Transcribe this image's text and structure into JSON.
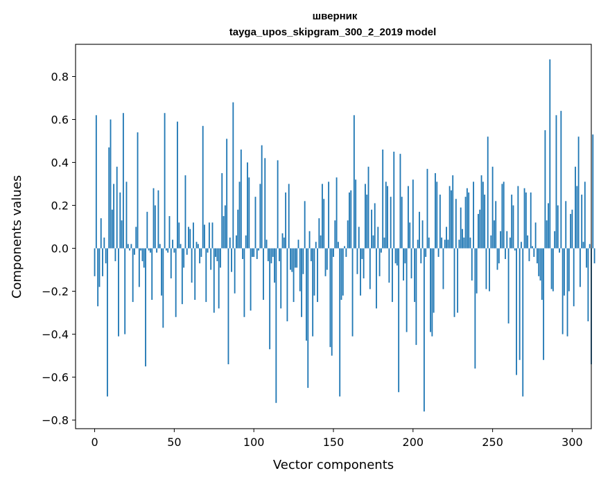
{
  "chart_data": {
    "type": "bar",
    "title_line1": "шверник",
    "title_line2": "tayga_upos_skipgram_300_2_2019 model",
    "xlabel": "Vector components",
    "ylabel": "Components values",
    "xlim": [
      -12,
      312
    ],
    "ylim": [
      -0.84,
      0.95
    ],
    "xticks": [
      0,
      50,
      100,
      150,
      200,
      250,
      300
    ],
    "xtick_labels": [
      "0",
      "50",
      "100",
      "150",
      "200",
      "250",
      "300"
    ],
    "yticks": [
      -0.8,
      -0.6,
      -0.4,
      -0.2,
      0.0,
      0.2,
      0.4,
      0.6,
      0.8
    ],
    "ytick_labels": [
      "−0.8",
      "−0.6",
      "−0.4",
      "−0.2",
      "0.0",
      "0.2",
      "0.4",
      "0.6",
      "0.8"
    ],
    "bar_color": "#1f77b4",
    "values": [
      -0.13,
      0.62,
      -0.27,
      -0.18,
      0.14,
      -0.13,
      0.05,
      -0.07,
      -0.69,
      0.47,
      0.6,
      0.18,
      0.3,
      -0.06,
      0.38,
      -0.41,
      0.26,
      0.13,
      0.63,
      -0.4,
      0.31,
      0.02,
      -0.01,
      0.02,
      -0.25,
      -0.03,
      0.1,
      0.54,
      -0.18,
      -0.01,
      -0.06,
      -0.09,
      -0.55,
      0.17,
      -0.01,
      -0.02,
      -0.24,
      0.28,
      0.2,
      -0.02,
      0.27,
      0.02,
      -0.22,
      -0.37,
      0.63,
      -0.01,
      -0.02,
      0.15,
      -0.14,
      0.04,
      -0.02,
      -0.32,
      0.59,
      0.12,
      0.02,
      -0.26,
      -0.09,
      0.34,
      -0.03,
      0.1,
      0.09,
      -0.16,
      0.12,
      -0.24,
      0.03,
      0.02,
      -0.07,
      -0.04,
      0.57,
      0.11,
      -0.25,
      -0.02,
      0.12,
      -0.1,
      0.12,
      -0.3,
      -0.04,
      -0.06,
      -0.28,
      -0.09,
      0.35,
      0.15,
      0.2,
      0.51,
      -0.54,
      0.05,
      -0.11,
      0.68,
      -0.21,
      0.06,
      0.18,
      0.31,
      0.46,
      -0.05,
      -0.32,
      0.06,
      0.4,
      0.33,
      -0.29,
      -0.04,
      -0.04,
      0.24,
      -0.05,
      -0.01,
      0.3,
      0.48,
      -0.24,
      0.42,
      0.04,
      -0.06,
      -0.47,
      -0.07,
      -0.04,
      -0.16,
      -0.72,
      0.41,
      -0.06,
      -0.28,
      0.07,
      0.05,
      0.26,
      -0.34,
      0.3,
      -0.1,
      -0.11,
      -0.25,
      -0.09,
      -0.09,
      0.04,
      -0.2,
      -0.32,
      -0.12,
      0.22,
      -0.43,
      -0.65,
      0.08,
      -0.06,
      -0.41,
      -0.22,
      0.03,
      -0.25,
      0.14,
      0.06,
      0.3,
      0.23,
      -0.13,
      -0.1,
      0.31,
      -0.46,
      -0.5,
      -0.04,
      0.13,
      0.33,
      0.03,
      -0.69,
      -0.24,
      -0.22,
      0.01,
      -0.04,
      0.13,
      0.26,
      0.27,
      -0.41,
      0.62,
      0.32,
      -0.12,
      0.1,
      -0.22,
      -0.05,
      -0.14,
      0.3,
      0.25,
      0.38,
      -0.19,
      0.18,
      0.06,
      0.21,
      -0.28,
      0.1,
      -0.13,
      -0.02,
      0.46,
      0.05,
      0.31,
      0.29,
      -0.16,
      0.24,
      -0.25,
      0.45,
      -0.07,
      -0.08,
      -0.67,
      0.44,
      0.24,
      -0.15,
      -0.07,
      -0.39,
      0.29,
      0.12,
      -0.14,
      0.32,
      -0.25,
      -0.45,
      0.04,
      0.17,
      -0.07,
      0.13,
      -0.76,
      -0.04,
      0.37,
      0.05,
      -0.39,
      -0.41,
      -0.3,
      0.35,
      0.31,
      -0.04,
      0.25,
      0.05,
      -0.19,
      0.04,
      0.1,
      0.04,
      0.29,
      0.27,
      0.34,
      -0.32,
      0.23,
      -0.3,
      0.04,
      0.19,
      0.09,
      0.05,
      0.24,
      0.28,
      0.26,
      0.05,
      -0.15,
      0.31,
      -0.56,
      -0.21,
      0.16,
      0.18,
      0.34,
      0.31,
      0.25,
      -0.19,
      0.52,
      -0.2,
      0.06,
      0.38,
      0.13,
      0.22,
      -0.1,
      -0.07,
      0.08,
      0.3,
      0.31,
      -0.05,
      0.08,
      -0.35,
      0.05,
      0.25,
      0.2,
      -0.01,
      -0.59,
      0.29,
      -0.52,
      0.03,
      -0.69,
      0.28,
      0.26,
      0.06,
      -0.06,
      0.26,
      0.01,
      -0.04,
      0.12,
      -0.07,
      -0.13,
      -0.15,
      -0.24,
      -0.52,
      0.55,
      0.13,
      0.21,
      0.88,
      -0.19,
      -0.2,
      0.08,
      0.62,
      0.2,
      -0.02,
      0.64,
      -0.4,
      -0.22,
      0.22,
      -0.41,
      -0.2,
      0.16,
      0.18,
      -0.27,
      0.38,
      0.29,
      0.52,
      -0.18,
      0.25,
      0.03,
      0.31,
      -0.09,
      -0.34,
      0.02,
      -0.54,
      0.53,
      -0.07
    ]
  }
}
